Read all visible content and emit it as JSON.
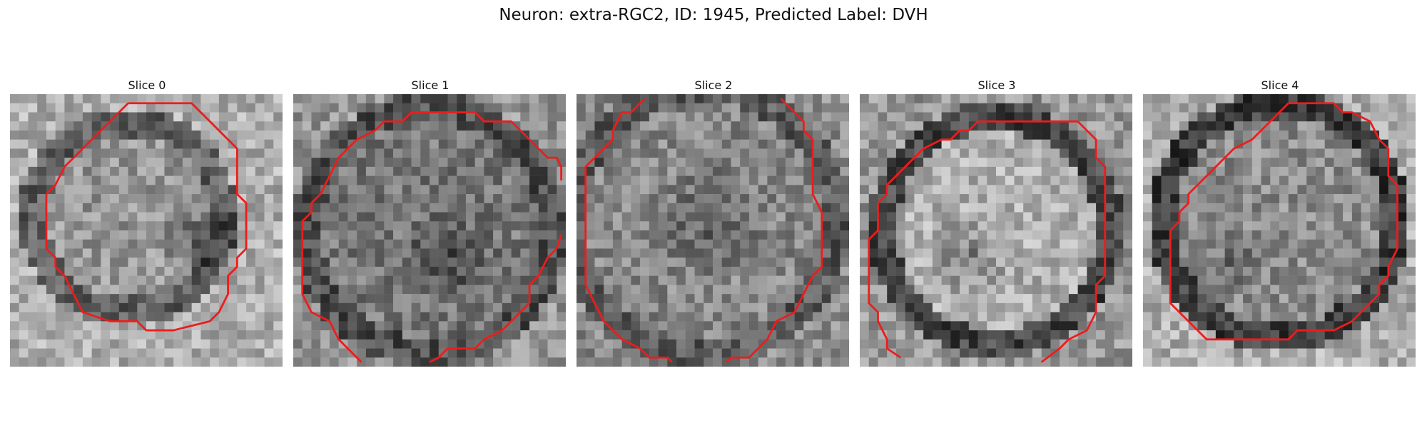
{
  "figure": {
    "title": "Neuron: extra-RGC2, ID: 1945, Predicted Label: DVH"
  },
  "panels": [
    {
      "title": "Slice 0"
    },
    {
      "title": "Slice 1"
    },
    {
      "title": "Slice 2"
    },
    {
      "title": "Slice 3"
    },
    {
      "title": "Slice 4"
    }
  ],
  "colors": {
    "contour": "#ee1c1c",
    "background": "#ffffff"
  }
}
